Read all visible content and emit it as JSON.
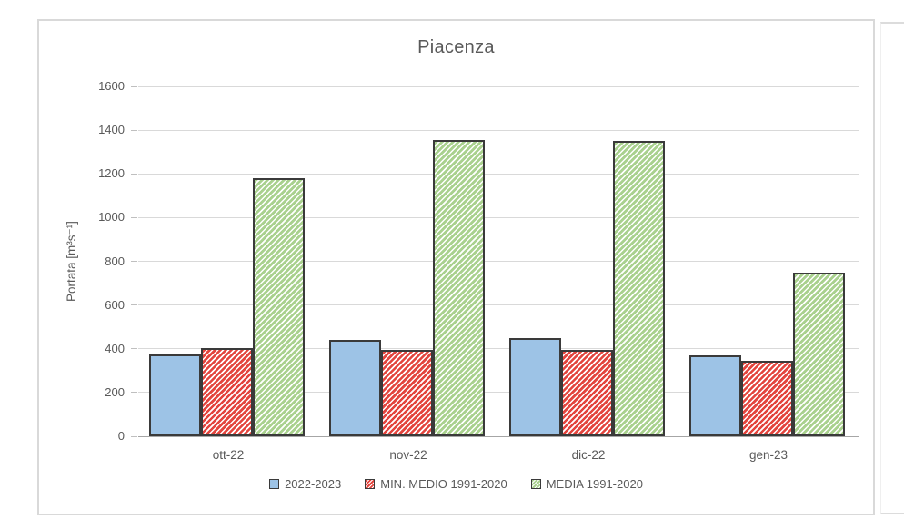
{
  "title": "Piacenza",
  "colors": {
    "series_blue": "#9dc3e6",
    "series_red": "#e3453e",
    "series_green": "#a9d18e",
    "hatch_white": "#ffffff",
    "bar_border": "#3a3a3a",
    "gridline": "#d9d9d9",
    "axis_line": "#a6a6a6",
    "text": "#595959",
    "frame_border": "#d9d9d9"
  },
  "chart_data": {
    "type": "bar",
    "title": "Piacenza",
    "categories": [
      "ott-22",
      "nov-22",
      "dic-22",
      "gen-23"
    ],
    "series": [
      {
        "name": "2022-2023",
        "style": "solid-blue",
        "values": [
          375,
          440,
          450,
          370
        ]
      },
      {
        "name": "MIN. MEDIO 1991-2020",
        "style": "hatched-red",
        "values": [
          405,
          395,
          395,
          345
        ]
      },
      {
        "name": "MEDIA 1991-2020",
        "style": "hatched-green",
        "values": [
          1180,
          1355,
          1350,
          750
        ]
      }
    ],
    "xlabel": "",
    "ylabel": "Portata [m³s⁻¹]",
    "ylim": [
      0,
      1600
    ],
    "ytick_step": 200,
    "yticks": [
      0,
      200,
      400,
      600,
      800,
      1000,
      1200,
      1400,
      1600
    ],
    "grid": "horizontal-only",
    "legend_position": "bottom"
  }
}
